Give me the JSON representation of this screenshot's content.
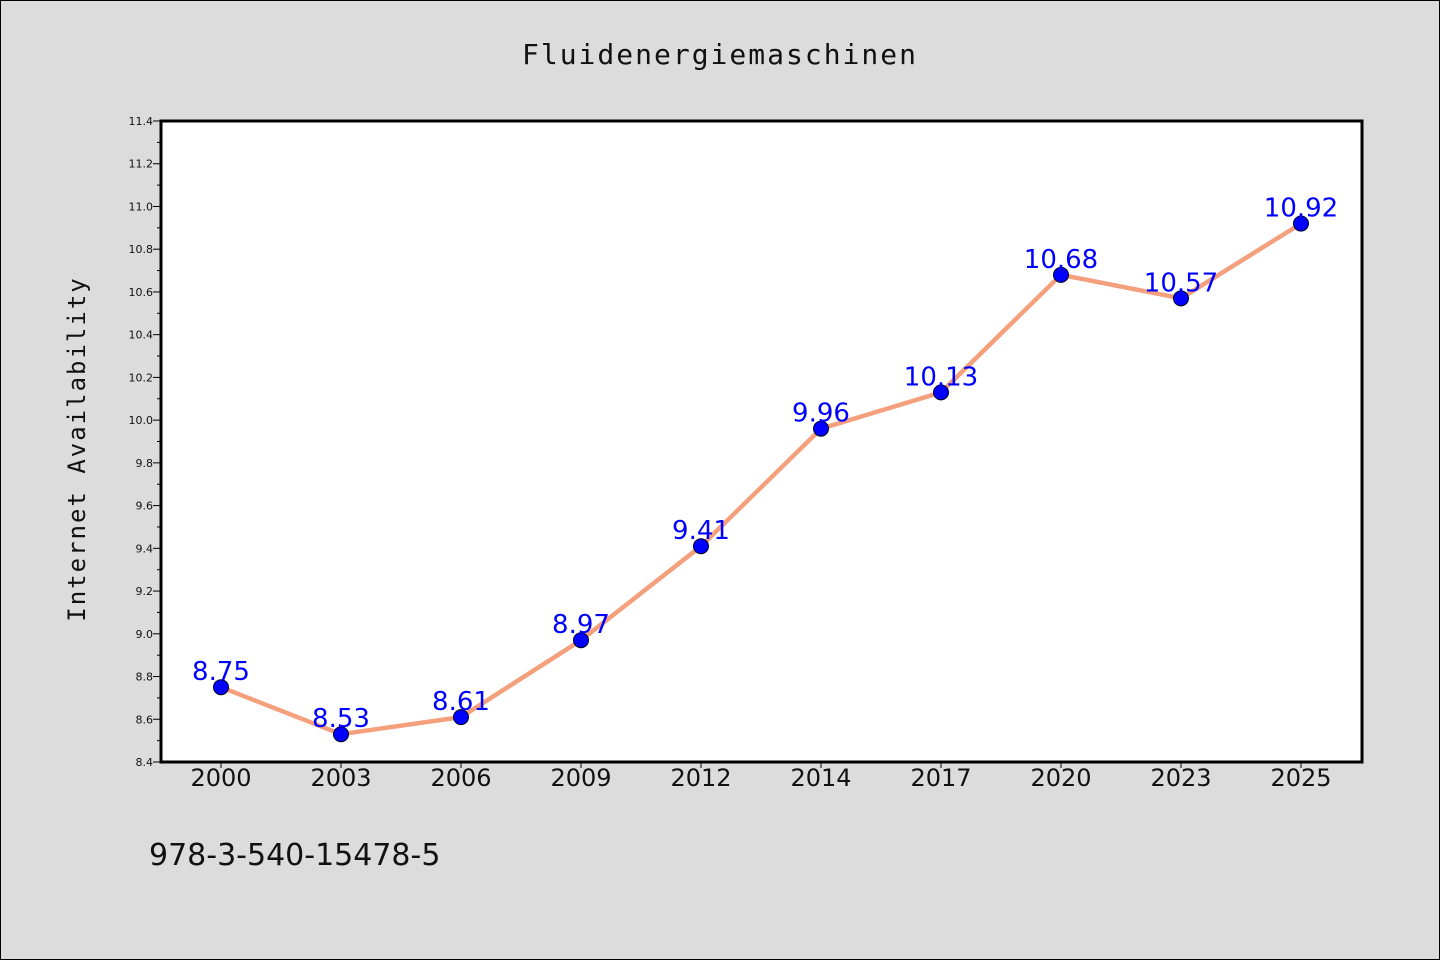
{
  "chart_data": {
    "type": "line",
    "title": "Fluidenergiemaschinen",
    "xlabel": "",
    "ylabel": "Internet Availability",
    "categories": [
      "2000",
      "2003",
      "2006",
      "2009",
      "2012",
      "2014",
      "2017",
      "2020",
      "2023",
      "2025"
    ],
    "series": [
      {
        "values": [
          8.75,
          8.53,
          8.61,
          8.97,
          9.41,
          9.96,
          10.13,
          10.68,
          10.57,
          10.92
        ]
      }
    ],
    "data_labels": [
      "8.75",
      "8.53",
      "8.61",
      "8.97",
      "9.41",
      "9.96",
      "10.13",
      "10.68",
      "10.57",
      "10.92"
    ],
    "ylim": [
      8.4,
      11.4
    ],
    "yticks": [
      8.4,
      8.6,
      8.8,
      9.0,
      9.2,
      9.4,
      9.6,
      9.8,
      10.0,
      10.2,
      10.4,
      10.6,
      10.8,
      11.0,
      11.2,
      11.4
    ],
    "ytick_labels": [
      "8.4",
      "8.6",
      "8.8",
      "9.0",
      "9.2",
      "9.4",
      "9.6",
      "9.8",
      "10.0",
      "10.2",
      "10.4",
      "10.6",
      "10.8",
      "11.0",
      "11.2",
      "11.4"
    ],
    "grid": false,
    "colors": {
      "line": "#f4a07c",
      "marker": "#0000ff",
      "label": "#0000ff",
      "background": "#dcdcdc",
      "plot_area": "#ffffff"
    }
  },
  "annotation": "978-3-540-15478-5"
}
